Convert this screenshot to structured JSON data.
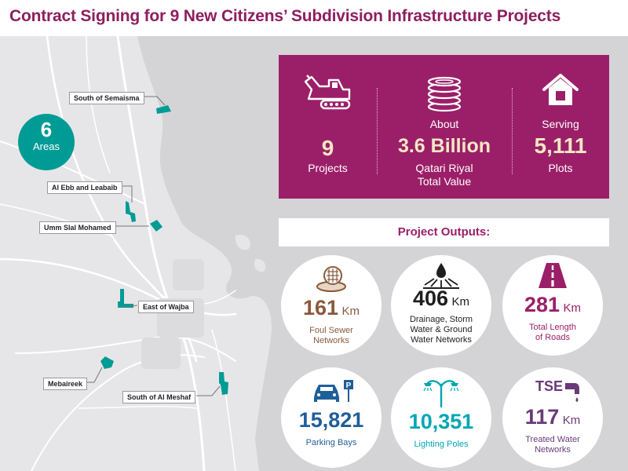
{
  "title": "Contract Signing for 9 New Citizens’ Subdivision Infrastructure Projects",
  "map": {
    "areas_count": "6",
    "areas_label": "Areas",
    "locations": [
      {
        "name": "South of Semaisma"
      },
      {
        "name": "Al Ebb and Leabaib"
      },
      {
        "name": "Umm Slal Mohamed"
      },
      {
        "name": "East of Wajba"
      },
      {
        "name": "Mebaireek"
      },
      {
        "name": "South of Al Meshaf"
      }
    ],
    "accent_color": "#009b95"
  },
  "summary": {
    "projects": {
      "value": "9",
      "label": "Projects",
      "icon": "excavator-icon"
    },
    "value": {
      "prefix": "About",
      "value": "3.6 Billion",
      "line1": "Qatari Riyal",
      "line2": "Total Value",
      "icon": "coins-icon"
    },
    "plots": {
      "prefix": "Serving",
      "value": "5,111",
      "label": "Plots",
      "icon": "house-icon"
    },
    "background_color": "#9b1f68"
  },
  "outputs": {
    "title": "Project Outputs:",
    "items": [
      {
        "value": "161",
        "unit": "Km",
        "desc1": "Foul Sewer",
        "desc2": "Networks",
        "desc3": "",
        "icon": "sewer-pipe-icon",
        "color": "#8a5a3c"
      },
      {
        "value": "406",
        "unit": "Km",
        "desc1": "Drainage, Storm",
        "desc2": "Water & Ground",
        "desc3": "Water Networks",
        "icon": "water-drop-icon",
        "color": "#1e1e1e"
      },
      {
        "value": "281",
        "unit": "Km",
        "desc1": "Total Length",
        "desc2": "of Roads",
        "desc3": "",
        "icon": "road-icon",
        "color": "#9b1f68"
      },
      {
        "value": "15,821",
        "unit": "",
        "desc1": "Parking Bays",
        "desc2": "",
        "desc3": "",
        "icon": "car-parking-icon",
        "color": "#1f5f99"
      },
      {
        "value": "10,351",
        "unit": "",
        "desc1": "Lighting Poles",
        "desc2": "",
        "desc3": "",
        "icon": "street-light-icon",
        "color": "#00a6b4"
      },
      {
        "value": "117",
        "unit": "Km",
        "desc1": "Treated Water",
        "desc2": "Networks",
        "desc3": "",
        "tse": "TSE",
        "icon": "tse-tap-icon",
        "color": "#6b3a78"
      }
    ]
  }
}
